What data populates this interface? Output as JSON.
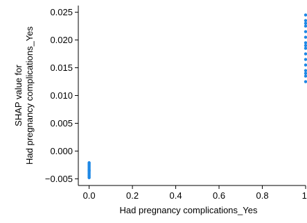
{
  "chart_data": {
    "type": "scatter",
    "title": "",
    "xlabel": "Had pregnancy complications_Yes",
    "ylabel_lines": [
      "SHAP value for",
      "Had pregnancy complications_Yes"
    ],
    "xlim": [
      -0.05,
      1.0
    ],
    "ylim": [
      -0.0062,
      0.0262
    ],
    "xticks": [
      0.0,
      0.2,
      0.4,
      0.6,
      0.8,
      1.0
    ],
    "xtick_labels": [
      "0.0",
      "0.2",
      "0.4",
      "0.6",
      "0.8",
      "1."
    ],
    "yticks": [
      -0.005,
      0.0,
      0.005,
      0.01,
      0.015,
      0.02,
      0.025
    ],
    "ytick_labels": [
      "−0.005",
      "0.000",
      "0.005",
      "0.010",
      "0.015",
      "0.020",
      "0.025"
    ],
    "grid": false,
    "point_color": "#1E88E5",
    "series": [
      {
        "x": [
          0.0,
          0.0,
          0.0,
          0.0,
          0.0,
          0.0,
          0.0,
          0.0,
          0.0,
          0.0,
          0.0,
          0.0,
          0.0,
          0.0,
          0.0,
          0.0,
          1.0,
          1.0,
          1.0,
          1.0,
          1.0,
          1.0,
          1.0,
          1.0,
          1.0,
          1.0,
          1.0,
          1.0,
          1.0,
          1.0,
          1.0,
          1.0
        ],
        "y": [
          -0.0048,
          -0.0046,
          -0.0044,
          -0.0042,
          -0.004,
          -0.0038,
          -0.0036,
          -0.0034,
          -0.0032,
          -0.003,
          -0.0028,
          -0.0026,
          -0.0024,
          -0.0022,
          -0.0021,
          -0.0035,
          0.0125,
          0.0135,
          0.0145,
          0.0155,
          0.0165,
          0.0175,
          0.0185,
          0.0195,
          0.0205,
          0.0215,
          0.0225,
          0.0235,
          0.0245,
          0.014,
          0.019,
          0.023
        ]
      }
    ]
  }
}
